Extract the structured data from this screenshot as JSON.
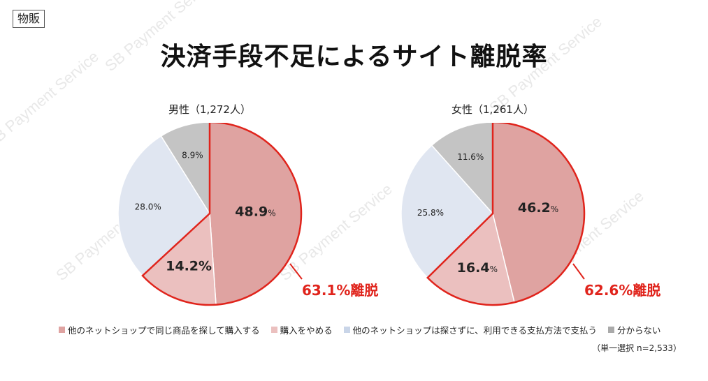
{
  "tag": "物販",
  "title": "決済手段不足によるサイト離脱率",
  "note": "（単一選択 n=2,533）",
  "watermark": "SB Payment Service",
  "colors": {
    "other_shop_same": "#dfa3a1",
    "quit": "#ebc0bf",
    "other_shop_no_search": "#e0e6f1",
    "unknown": "#c4c4c4",
    "highlight": "#e0241c"
  },
  "legend": [
    {
      "label": "他のネットショップで同じ商品を探して購入する",
      "color": "#dfa3a1"
    },
    {
      "label": "購入をやめる",
      "color": "#ebc0bf"
    },
    {
      "label": "他のネットショップは探さずに、利用できる支払方法で支払う",
      "color": "#c9d5e8"
    },
    {
      "label": "分からない",
      "color": "#aaaaaa"
    }
  ],
  "chart_data": [
    {
      "type": "pie",
      "title": "男性（1,272人）",
      "labels": [
        "他のネットショップで同じ商品を探して購入する",
        "購入をやめる",
        "他のネットショップは探さずに、利用できる支払方法で支払う",
        "分からない"
      ],
      "values": [
        48.9,
        14.2,
        28.0,
        8.9
      ],
      "value_labels": [
        "48.9",
        "14.2%",
        "28.0%",
        "8.9%"
      ],
      "annotation": "63.1%離脱"
    },
    {
      "type": "pie",
      "title": "女性（1,261人）",
      "labels": [
        "他のネットショップで同じ商品を探して購入する",
        "購入をやめる",
        "他のネットショップは探さずに、利用できる支払方法で支払う",
        "分からない"
      ],
      "values": [
        46.2,
        16.4,
        25.8,
        11.6
      ],
      "value_labels": [
        "46.2",
        "16.4",
        "25.8%",
        "11.6%"
      ],
      "annotation": "62.6%離脱"
    }
  ]
}
